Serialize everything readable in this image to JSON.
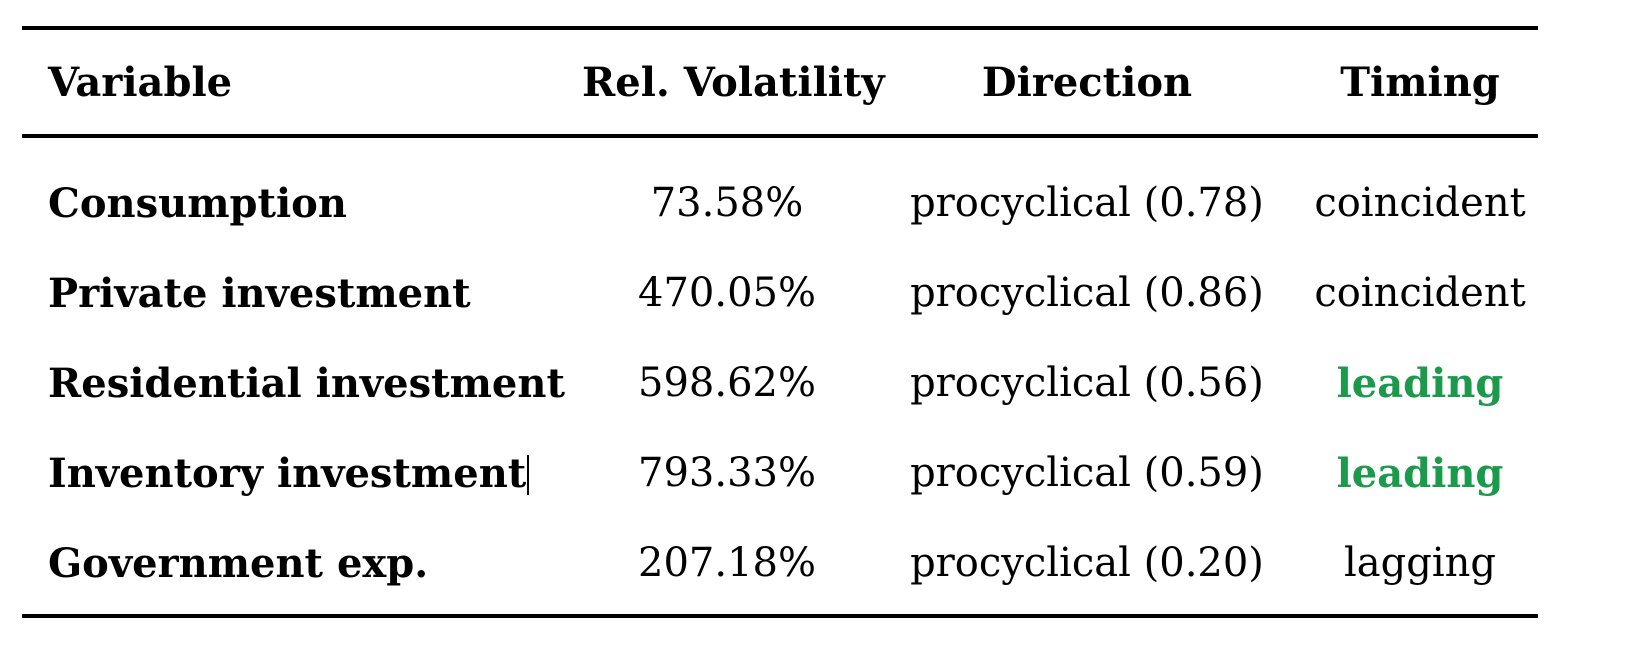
{
  "table": {
    "headers": {
      "variable": "Variable",
      "volatility": "Rel. Volatility",
      "direction": "Direction",
      "timing": "Timing"
    },
    "rows": [
      {
        "variable": "Consumption",
        "volatility": "73.58%",
        "direction": "procyclical (0.78)",
        "timing": "coincident",
        "timing_style": "normal"
      },
      {
        "variable": "Private investment",
        "volatility": "470.05%",
        "direction": "procyclical (0.86)",
        "timing": "coincident",
        "timing_style": "normal"
      },
      {
        "variable": "Residential investment",
        "volatility": "598.62%",
        "direction": "procyclical (0.56)",
        "timing": "leading",
        "timing_style": "highlight"
      },
      {
        "variable": "Inventory investment",
        "volatility": "793.33%",
        "direction": "procyclical (0.59)",
        "timing": "leading",
        "timing_style": "highlight"
      },
      {
        "variable": "Government exp.",
        "volatility": "207.18%",
        "direction": "procyclical (0.20)",
        "timing": "lagging",
        "timing_style": "normal"
      }
    ]
  },
  "colors": {
    "highlight": "#1a9a4a",
    "text": "#000000",
    "background": "#ffffff"
  }
}
